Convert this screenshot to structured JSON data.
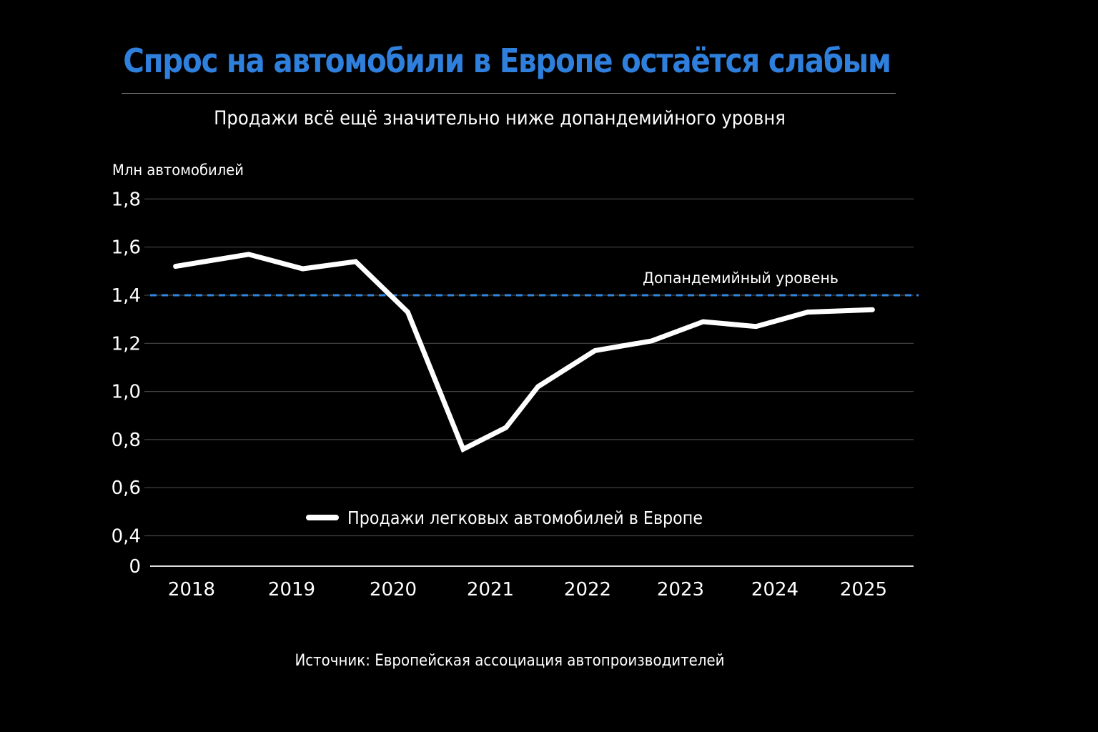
{
  "title": "Спрос на автомобили в Европе остаётся слабым",
  "subtitle": "Продажи всё ещё значительно ниже допандемийного уровня",
  "source": "Источник: Европейская ассоциация автопроизводителей",
  "chart_data": {
    "type": "line",
    "title": "Спрос на автомобили в Европе остаётся слабым",
    "subtitle": "Продажи всё ещё значительно ниже допандемийного уровня",
    "ylabel": "Млн автомобилей",
    "xlabel": "",
    "x_ticks": [
      "2018",
      "2019",
      "2020",
      "2021",
      "2022",
      "2023",
      "2024",
      "2025"
    ],
    "y_ticks": [
      {
        "value": 0,
        "label": "0"
      },
      {
        "value": 0.4,
        "label": "0,4"
      },
      {
        "value": 0.6,
        "label": "0,6"
      },
      {
        "value": 0.8,
        "label": "0,8"
      },
      {
        "value": 1.0,
        "label": "1,0"
      },
      {
        "value": 1.2,
        "label": "1,2"
      },
      {
        "value": 1.4,
        "label": "1,4"
      },
      {
        "value": 1.6,
        "label": "1,6"
      },
      {
        "value": 1.8,
        "label": "1,8"
      }
    ],
    "ylim": [
      0,
      1.8
    ],
    "grid": true,
    "legend_placement": "bottom-center",
    "series": [
      {
        "name": "Продажи легковых автомобилей в Европе",
        "color": "#ffffff",
        "x": [
          2017.84,
          2018.57,
          2019.11,
          2019.63,
          2020.15,
          2020.72,
          2021.16,
          2021.49,
          2022.08,
          2022.69,
          2023.24,
          2023.8,
          2024.37,
          2025.1
        ],
        "y": [
          1.52,
          1.57,
          1.51,
          1.54,
          1.33,
          0.76,
          0.85,
          1.02,
          1.17,
          1.21,
          1.29,
          1.27,
          1.33,
          1.34
        ]
      }
    ],
    "reference_line": {
      "value": 1.4,
      "label": "Допандемийный уровень",
      "color": "#2f86e0",
      "style": "dashed"
    }
  }
}
